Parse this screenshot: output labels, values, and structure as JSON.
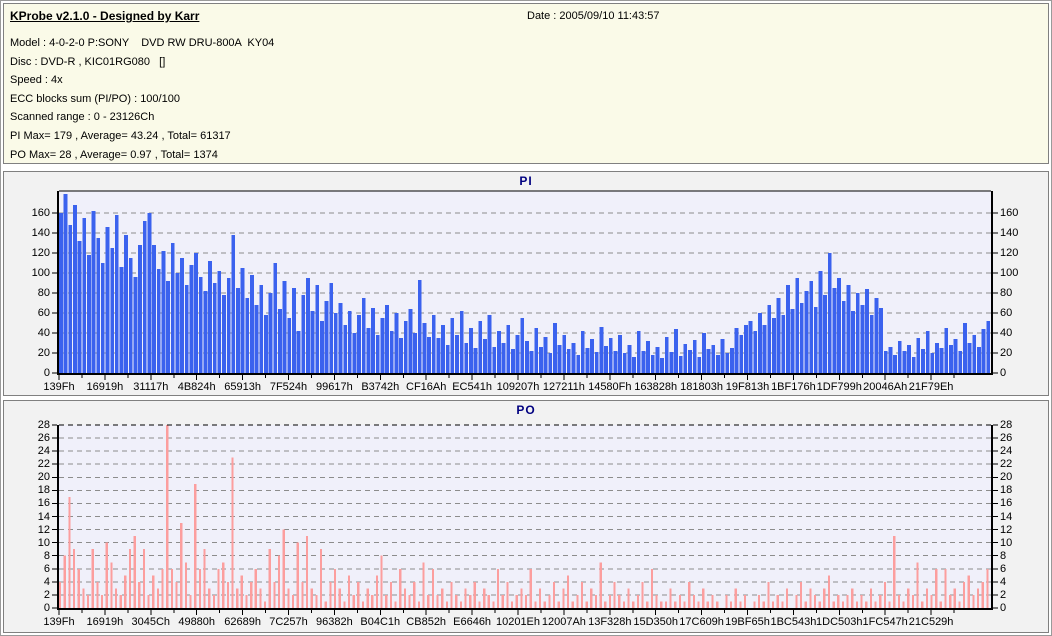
{
  "window_title": "KProbe v2.1.0 - Designed by Karr",
  "date_label": "Date : 2005/09/10 11:43:57",
  "info": {
    "lines": [
      "Model : 4-0-2-0 P:SONY    DVD RW DRU-800A  KY04",
      "Disc : DVD-R , KIC01RG080   []",
      "Speed : 4x",
      "ECC blocks sum (PI/PO) : 100/100",
      "Scanned range : 0 - 23126Ch",
      "PI Max= 179 , Average= 43.24 , Total= 61317",
      "PO Max= 28 , Average= 0.97 , Total= 1374"
    ]
  },
  "colors": {
    "info_bg": "#fafae8",
    "panel_bg": "#f2f2f2",
    "plot_bg": "#f0f0fa",
    "grid": "#8c8c8c",
    "axis": "#000000",
    "pi_bar": "#3b62ee",
    "po_bar": "#fc9e9e",
    "title": "#000080"
  },
  "chart_data": [
    {
      "id": "pi",
      "type": "bar",
      "title": "PI",
      "ylim": [
        0,
        182
      ],
      "yticks": [
        0,
        20,
        40,
        60,
        80,
        100,
        120,
        140,
        160
      ],
      "grid": "dashed-horizontal",
      "top_border": "solid",
      "bar_color": "#3b62ee",
      "x_tick_labels": [
        "139Fh",
        "16919h",
        "31117h",
        "4B824h",
        "65913h",
        "7F524h",
        "99617h",
        "B3742h",
        "CF16Ah",
        "EC541h",
        "109207h",
        "127211h",
        "14580Fh",
        "163828h",
        "181803h",
        "19F813h",
        "1BF176h",
        "1DF799h",
        "20046Ah",
        "21F79Eh"
      ],
      "stats": {
        "max": 179,
        "average": 43.24,
        "total": 61317
      },
      "values": [
        160,
        179,
        148,
        168,
        132,
        155,
        118,
        162,
        135,
        110,
        146,
        125,
        158,
        106,
        138,
        115,
        96,
        128,
        152,
        160,
        128,
        104,
        122,
        92,
        130,
        100,
        115,
        88,
        108,
        120,
        96,
        82,
        112,
        90,
        102,
        78,
        95,
        138,
        85,
        105,
        75,
        98,
        68,
        88,
        58,
        80,
        110,
        64,
        92,
        55,
        85,
        42,
        78,
        95,
        62,
        88,
        52,
        72,
        90,
        60,
        70,
        48,
        62,
        40,
        58,
        75,
        45,
        65,
        38,
        55,
        68,
        42,
        60,
        35,
        52,
        64,
        40,
        93,
        50,
        36,
        58,
        35,
        48,
        28,
        55,
        38,
        62,
        30,
        45,
        25,
        52,
        34,
        58,
        26,
        42,
        30,
        48,
        24,
        38,
        55,
        32,
        22,
        45,
        26,
        36,
        20,
        50,
        28,
        38,
        24,
        30,
        18,
        42,
        25,
        34,
        21,
        46,
        27,
        35,
        22,
        38,
        20,
        28,
        16,
        42,
        22,
        32,
        18,
        26,
        15,
        36,
        21,
        44,
        17,
        29,
        23,
        33,
        16,
        40,
        24,
        28,
        18,
        34,
        20,
        25,
        45,
        38,
        48,
        52,
        42,
        60,
        48,
        68,
        55,
        75,
        58,
        88,
        64,
        95,
        70,
        82,
        92,
        66,
        102,
        78,
        120,
        85,
        95,
        72,
        88,
        62,
        80,
        68,
        84,
        58,
        75,
        65,
        22,
        26,
        18,
        32,
        22,
        28,
        16,
        35,
        24,
        42,
        20,
        30,
        25,
        45,
        28,
        34,
        22,
        50,
        30,
        38,
        26,
        44,
        52
      ]
    },
    {
      "id": "po",
      "type": "bar",
      "title": "PO",
      "ylim": [
        0,
        28
      ],
      "yticks": [
        0,
        2,
        4,
        6,
        8,
        10,
        12,
        14,
        16,
        18,
        20,
        22,
        24,
        26,
        28
      ],
      "grid": "dashed-horizontal",
      "top_border": "dashed",
      "bar_color": "#fc9e9e",
      "x_tick_labels": [
        "139Fh",
        "16919h",
        "3045Ch",
        "49880h",
        "62689h",
        "7C257h",
        "96382h",
        "B04C1h",
        "CB852h",
        "E6646h",
        "10201Eh",
        "12007Ah",
        "13F328h",
        "15D350h",
        "17C609h",
        "19BF65h",
        "1BC543h",
        "1DC503h",
        "1FC547h",
        "21C529h"
      ],
      "stats": {
        "max": 28,
        "average": 0.97,
        "total": 1374
      },
      "values": [
        4,
        8,
        17,
        9,
        6,
        3,
        2,
        9,
        4,
        2,
        10,
        7,
        3,
        2,
        5,
        9,
        11,
        4,
        9,
        2,
        5,
        3,
        6,
        28,
        6,
        4,
        13,
        7,
        2,
        19,
        6,
        9,
        3,
        2,
        6,
        7,
        4,
        23,
        3,
        5,
        2,
        4,
        6,
        3,
        1,
        9,
        4,
        8,
        12,
        3,
        2,
        10,
        4,
        11,
        3,
        2,
        9,
        1,
        4,
        6,
        3,
        1,
        5,
        2,
        4,
        1,
        3,
        2,
        5,
        8,
        2,
        4,
        1,
        6,
        3,
        2,
        4,
        1,
        7,
        2,
        6,
        2,
        3,
        1,
        4,
        2,
        1,
        3,
        2,
        4,
        1,
        3,
        2,
        1,
        6,
        2,
        4,
        1,
        2,
        3,
        2,
        6,
        1,
        3,
        1,
        2,
        4,
        1,
        3,
        5,
        1,
        2,
        4,
        1,
        3,
        2,
        7,
        1,
        2,
        4,
        2,
        1,
        3,
        1,
        2,
        4,
        1,
        6,
        2,
        1,
        1,
        3,
        1,
        2,
        1,
        4,
        2,
        1,
        3,
        1,
        2,
        1,
        0,
        2,
        1,
        3,
        1,
        2,
        0,
        1,
        2,
        1,
        4,
        1,
        2,
        1,
        3,
        0,
        2,
        4,
        1,
        3,
        2,
        1,
        3,
        5,
        1,
        2,
        1,
        2,
        3,
        1,
        2,
        1,
        3,
        1,
        2,
        4,
        1,
        11,
        2,
        1,
        3,
        2,
        7,
        1,
        3,
        2,
        6,
        1,
        6,
        2,
        3,
        1,
        4,
        5,
        2,
        3,
        4,
        6
      ]
    }
  ]
}
